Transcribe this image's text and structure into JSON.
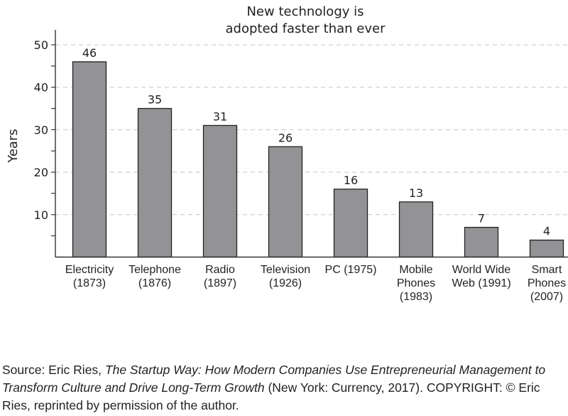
{
  "chart_data": {
    "type": "bar",
    "title": [
      "New technology is",
      "adopted faster than ever"
    ],
    "xlabel": "",
    "ylabel": "Years",
    "ylim": [
      0,
      53
    ],
    "yticks": [
      10,
      20,
      30,
      40,
      50
    ],
    "grid": true,
    "categories": [
      [
        "Electricity",
        "(1873)"
      ],
      [
        "Telephone",
        "(1876)"
      ],
      [
        "Radio",
        "(1897)"
      ],
      [
        "Television",
        "(1926)"
      ],
      [
        "PC (1975)"
      ],
      [
        "Mobile Phones",
        "(1983)"
      ],
      [
        "World Wide",
        "Web (1991)"
      ],
      [
        "Smart Phones",
        "(2007)"
      ]
    ],
    "values": [
      46,
      35,
      31,
      26,
      16,
      13,
      7,
      4
    ],
    "data_labels": [
      "46",
      "35",
      "31",
      "26",
      "16",
      "13",
      "7",
      "4"
    ],
    "bar_color": "#939396"
  },
  "caption": {
    "prefix": "Source: Eric Ries, ",
    "book_title": "The Startup Way: How Modern Companies Use Entrepreneurial Management to Transform Culture and Drive Long-Term Growth",
    "suffix": " (New York: Currency, 2017). COPYRIGHT: © Eric Ries, reprinted by permission of the author."
  }
}
